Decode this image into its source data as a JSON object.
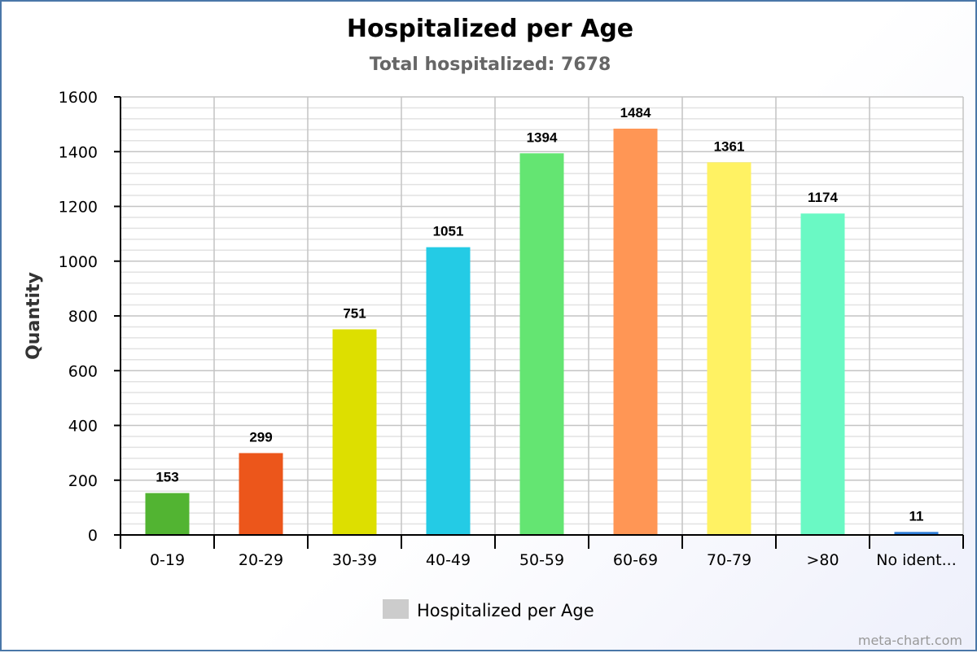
{
  "chart_data": {
    "type": "bar",
    "title": "Hospitalized per Age",
    "subtitle": "Total hospitalized: 7678",
    "ylabel": "Quantity",
    "xlabel": "",
    "ylim": [
      0,
      1600
    ],
    "yticks": [
      0,
      200,
      400,
      600,
      800,
      1000,
      1200,
      1400,
      1600
    ],
    "grid": true,
    "categories": [
      "0-19",
      "20-29",
      "30-39",
      "40-49",
      "50-59",
      "60-69",
      "70-79",
      ">80",
      "No ident..."
    ],
    "series": [
      {
        "name": "Hospitalized per Age",
        "values": [
          153,
          299,
          751,
          1051,
          1394,
          1484,
          1361,
          1174,
          11
        ],
        "colors": [
          "#52b432",
          "#ec561b",
          "#dddf00",
          "#24cbe5",
          "#64e572",
          "#ff9655",
          "#fff263",
          "#6af9c4",
          "#2f7ed8"
        ]
      }
    ],
    "legend": {
      "position": "bottom-center",
      "swatch_color": "#cccccc"
    }
  },
  "credit": "meta-chart.com"
}
